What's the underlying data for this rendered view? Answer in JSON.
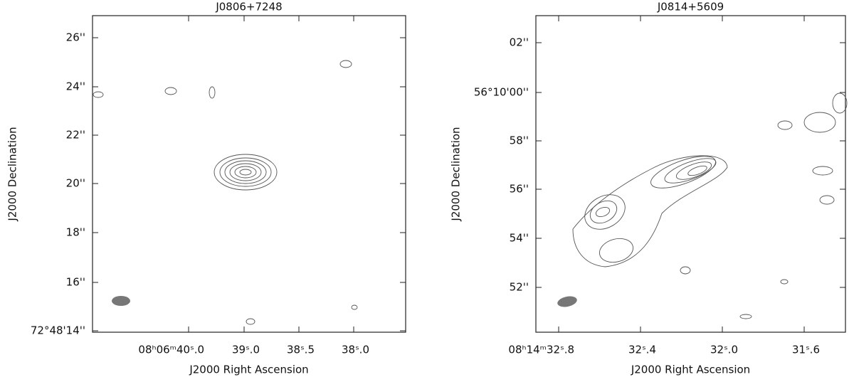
{
  "panels": [
    {
      "title": "J0806+7248",
      "x_label": "J2000 Right Ascension",
      "y_label": "J2000 Declination",
      "x_tick_labels": [
        "08ʰ06ᵐ40ˢ.0",
        "39ˢ.0",
        "38ˢ.5",
        "38ˢ.0"
      ],
      "y_tick_labels": [
        "26''",
        "24''",
        "22''",
        "20''",
        "18''",
        "16''",
        "72°48'14''"
      ]
    },
    {
      "title": "J0814+5609",
      "x_label": "J2000 Right Ascension",
      "y_label": "J2000 Declination",
      "x_tick_labels": [
        "08ʰ14ᵐ32ˢ.8",
        "32ˢ.4",
        "32ˢ.0",
        "31ˢ.6"
      ],
      "y_tick_labels": [
        "02''",
        "56°10'00''",
        "58''",
        "56''",
        "54''",
        "52''"
      ]
    }
  ]
}
